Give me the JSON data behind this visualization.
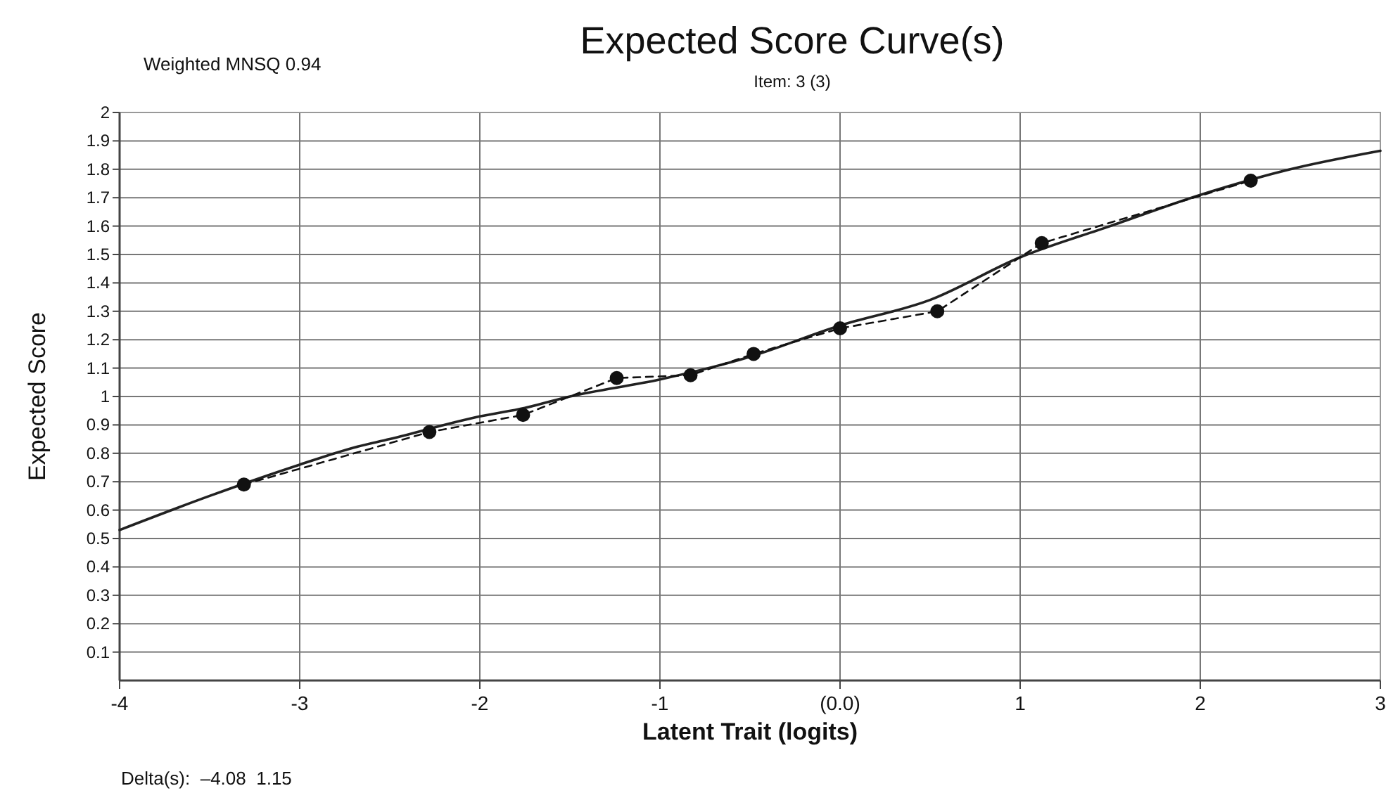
{
  "chart_data": {
    "type": "line",
    "title": "Expected Score Curve(s)",
    "subtitle": "Item: 3 (3)",
    "xlabel": "Latent Trait (logits)",
    "ylabel": "Expected Score",
    "annotations": [
      "Weighted MNSQ 0.94",
      "Delta(s):  –4.08  1.15"
    ],
    "xlim": [
      -4,
      3
    ],
    "xticks": [
      -4,
      -3,
      -2,
      -1,
      {
        "value": 0,
        "label": "(0.0)"
      },
      1,
      2,
      3
    ],
    "ylim": [
      0,
      2
    ],
    "yticks": [
      0.1,
      0.2,
      0.3,
      0.4,
      0.5,
      0.6,
      0.7,
      0.8,
      0.9,
      1,
      1.1,
      1.2,
      1.3,
      1.4,
      1.5,
      1.6,
      1.7,
      1.8,
      1.9,
      2
    ],
    "grid": true,
    "series": [
      {
        "color": "#222222",
        "line_style": "solid",
        "marker": "none",
        "x": [
          -4,
          -3.5,
          -3,
          -2.7,
          -2.5,
          -2,
          -1.75,
          -1.5,
          -1,
          -0.5,
          0,
          0.5,
          1,
          1.5,
          2,
          2.5,
          3
        ],
        "values": [
          0.53,
          0.65,
          0.76,
          0.82,
          0.85,
          0.93,
          0.96,
          1.0,
          1.06,
          1.14,
          1.25,
          1.34,
          1.49,
          1.6,
          1.71,
          1.8,
          1.865
        ]
      },
      {
        "color": "#111111",
        "line_style": "dashed",
        "marker": "circle",
        "x": [
          -3.31,
          -2.28,
          -1.76,
          -1.24,
          -0.83,
          -0.48,
          0.0,
          0.54,
          1.12,
          2.28
        ],
        "values": [
          0.69,
          0.875,
          0.935,
          1.065,
          1.075,
          1.15,
          1.24,
          1.3,
          1.54,
          1.76
        ]
      }
    ]
  }
}
